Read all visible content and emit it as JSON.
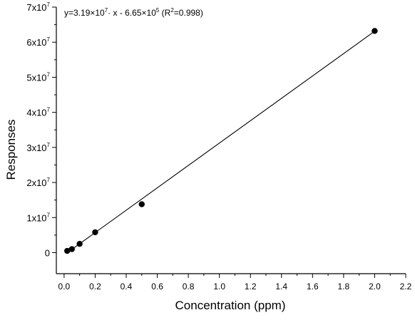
{
  "chart_data": {
    "type": "scatter",
    "title": "",
    "xlabel": "Concentration (ppm)",
    "ylabel": "Responses",
    "xlim": [
      -0.05,
      2.2
    ],
    "ylim": [
      -0.6,
      7
    ],
    "y_unit_note": "×10^7",
    "x_ticks": [
      {
        "value": 0.0,
        "label": "0.0"
      },
      {
        "value": 0.2,
        "label": "0.2"
      },
      {
        "value": 0.4,
        "label": "0.4"
      },
      {
        "value": 0.6,
        "label": "0.6"
      },
      {
        "value": 0.8,
        "label": "0.8"
      },
      {
        "value": 1.0,
        "label": "1.0"
      },
      {
        "value": 1.2,
        "label": "1.2"
      },
      {
        "value": 1.4,
        "label": "1.4"
      },
      {
        "value": 1.6,
        "label": "1.6"
      },
      {
        "value": 1.8,
        "label": "1.8"
      },
      {
        "value": 2.0,
        "label": "2.0"
      },
      {
        "value": 2.2,
        "label": "2.2"
      }
    ],
    "y_ticks": [
      {
        "value": 0,
        "base": "0",
        "exp": ""
      },
      {
        "value": 1,
        "base": "1x10",
        "exp": "7"
      },
      {
        "value": 2,
        "base": "2x10",
        "exp": "7"
      },
      {
        "value": 3,
        "base": "3x10",
        "exp": "7"
      },
      {
        "value": 4,
        "base": "4x10",
        "exp": "7"
      },
      {
        "value": 5,
        "base": "5x10",
        "exp": "7"
      },
      {
        "value": 6,
        "base": "6x10",
        "exp": "7"
      },
      {
        "value": 7,
        "base": "7x10",
        "exp": "7"
      }
    ],
    "series": [
      {
        "points": [
          {
            "x": 0.02,
            "y": 0.05
          },
          {
            "x": 0.05,
            "y": 0.1
          },
          {
            "x": 0.1,
            "y": 0.25
          },
          {
            "x": 0.2,
            "y": 0.58
          },
          {
            "x": 0.5,
            "y": 1.38
          },
          {
            "x": 2.0,
            "y": 6.32
          }
        ],
        "color": "#000000"
      }
    ],
    "fit_line": {
      "slope": 3.19,
      "intercept": -0.0665,
      "x_range": [
        0.02,
        2.0
      ],
      "color": "#000000"
    },
    "annotation": {
      "equation_pre": "y=3.19×10",
      "equation_exp1": "7",
      "equation_mid": "· x - 6.65×10",
      "equation_exp2": "5",
      "equation_r_pre": " (R",
      "equation_r_exp": "2",
      "equation_r_post": "=0.998)"
    }
  }
}
